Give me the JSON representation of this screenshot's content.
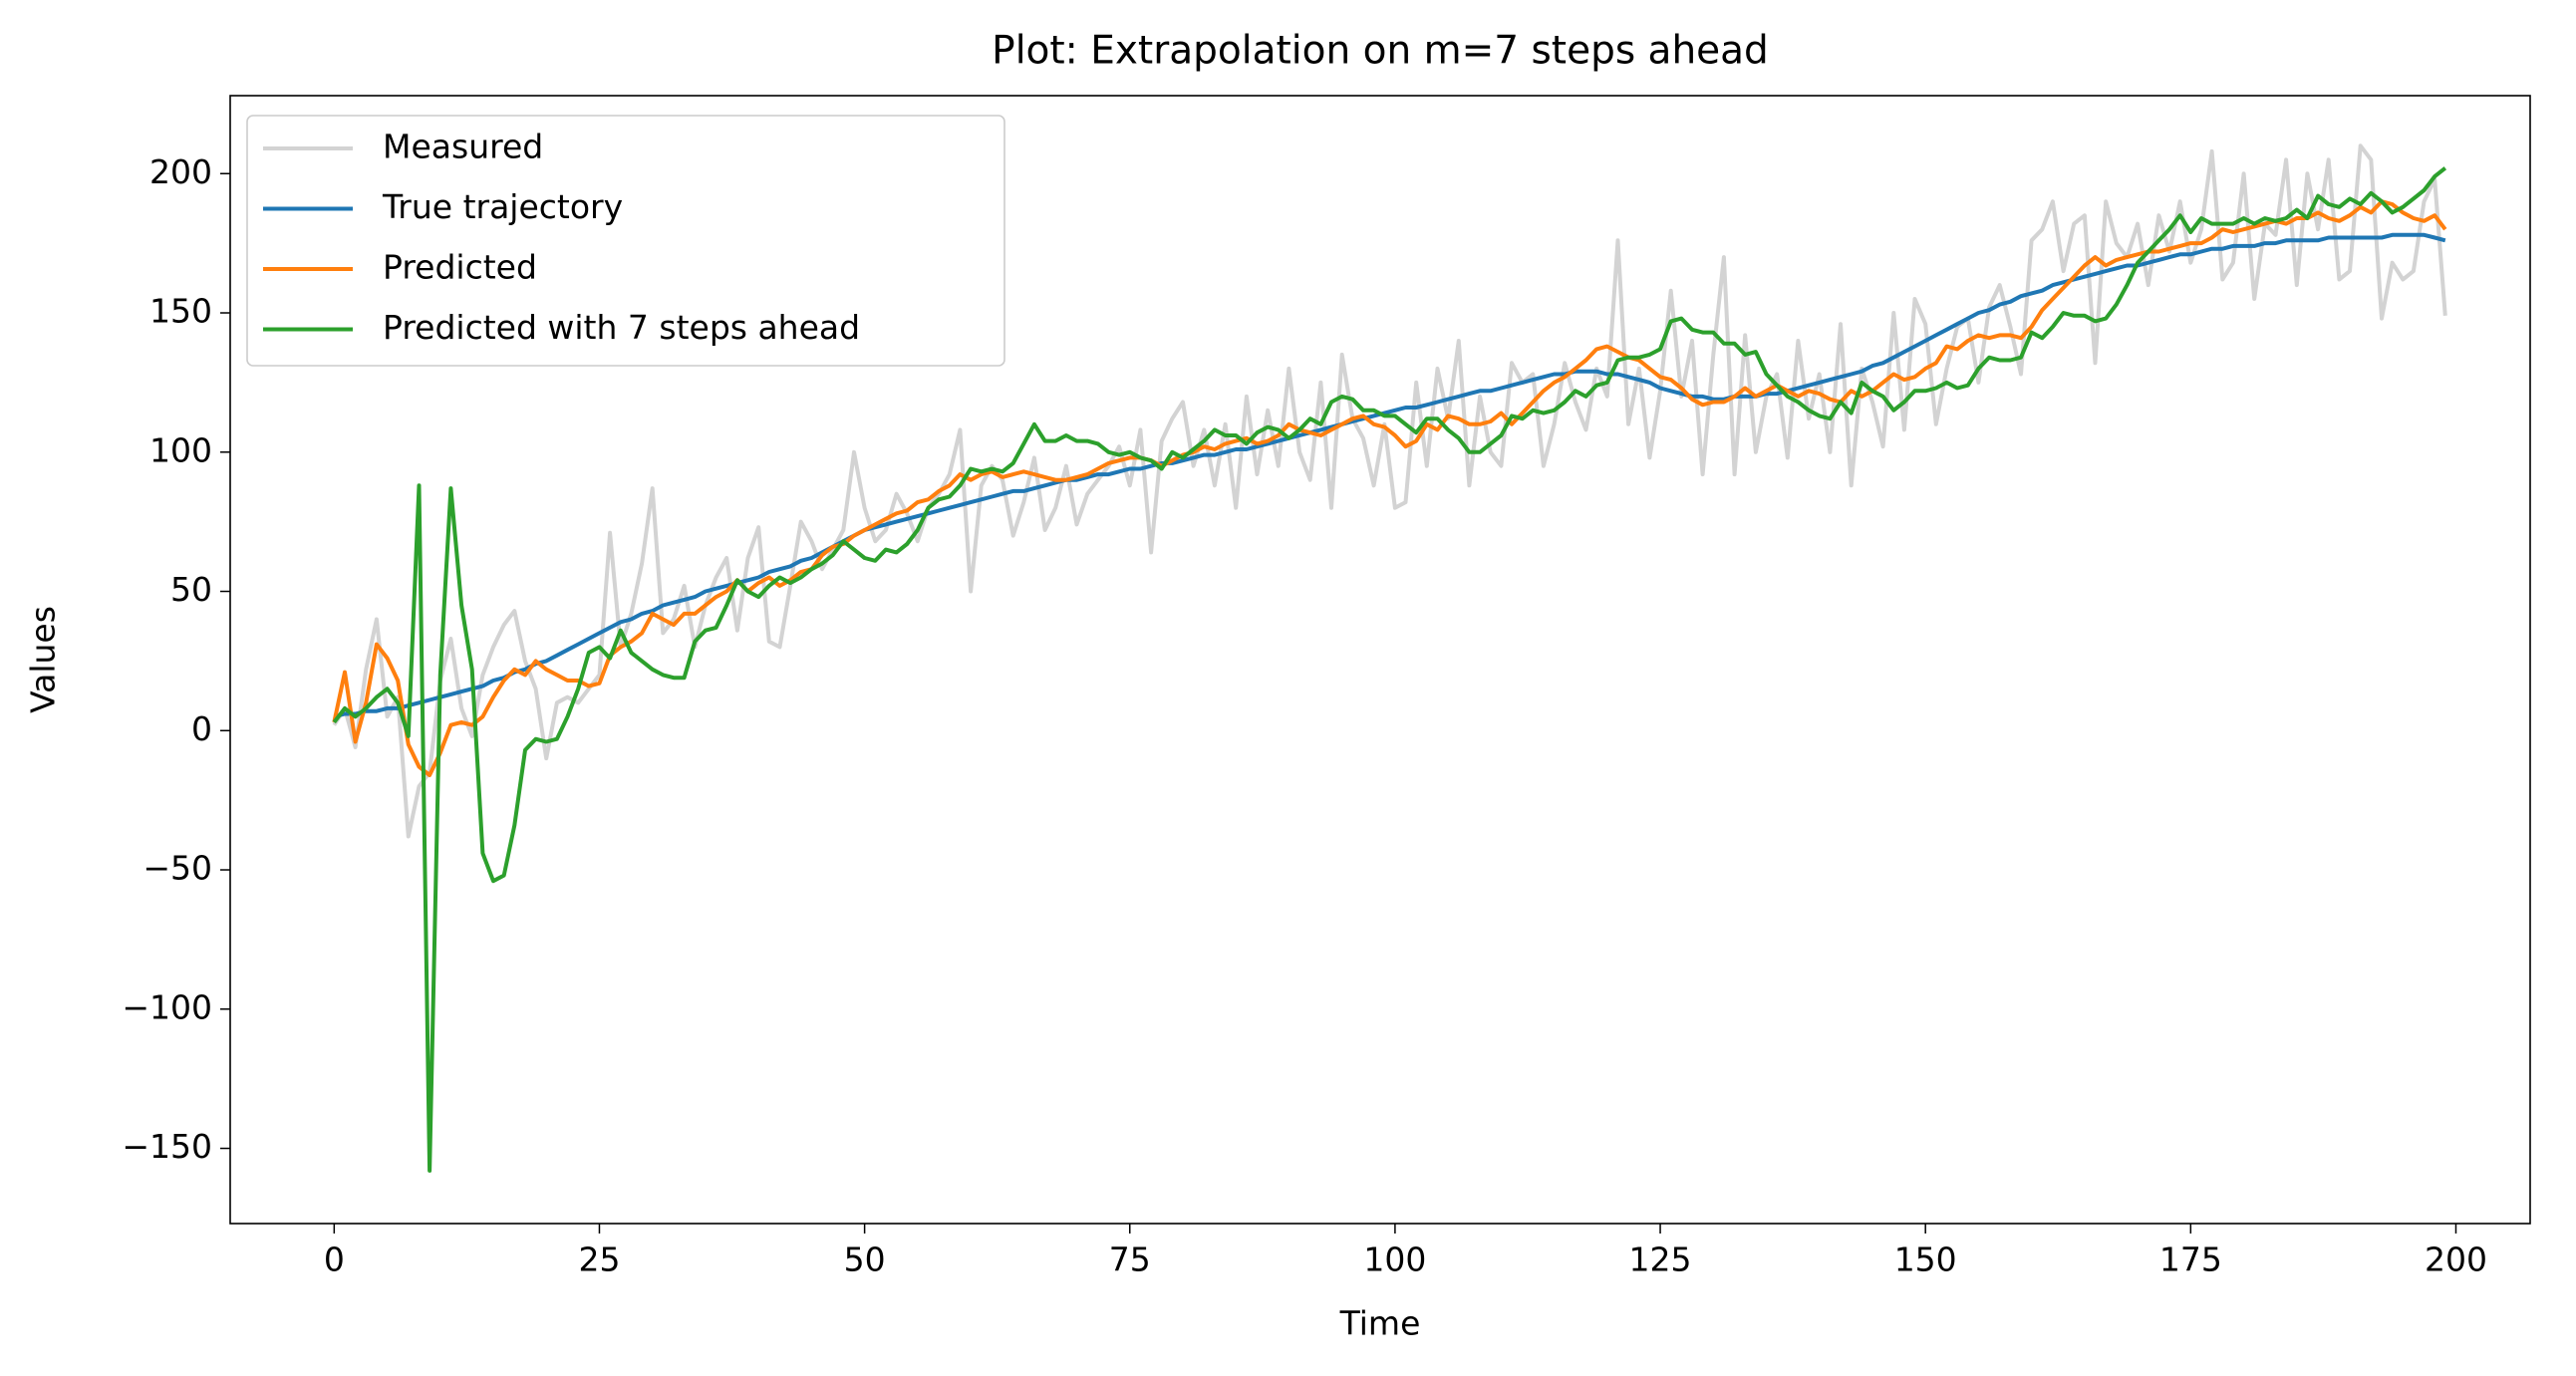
{
  "chart_data": {
    "type": "line",
    "title": "Plot: Extrapolation on m=7 steps ahead",
    "xlabel": "Time",
    "ylabel": "Values",
    "xlim": [
      -9.8,
      207
    ],
    "ylim": [
      -177,
      228
    ],
    "xticks": [
      0,
      25,
      50,
      75,
      100,
      125,
      150,
      175,
      200
    ],
    "yticks": [
      {
        "value": -150,
        "label": "−150"
      },
      {
        "value": -100,
        "label": "−100"
      },
      {
        "value": -50,
        "label": "−50"
      },
      0,
      50,
      100,
      150,
      200
    ],
    "legend": "upper left",
    "x": [
      0,
      1,
      2,
      3,
      4,
      5,
      6,
      7,
      8,
      9,
      10,
      11,
      12,
      13,
      14,
      15,
      16,
      17,
      18,
      19,
      20,
      21,
      22,
      23,
      24,
      25,
      26,
      27,
      28,
      29,
      30,
      31,
      32,
      33,
      34,
      35,
      36,
      37,
      38,
      39,
      40,
      41,
      42,
      43,
      44,
      45,
      46,
      47,
      48,
      49,
      50,
      51,
      52,
      53,
      54,
      55,
      56,
      57,
      58,
      59,
      60,
      61,
      62,
      63,
      64,
      65,
      66,
      67,
      68,
      69,
      70,
      71,
      72,
      73,
      74,
      75,
      76,
      77,
      78,
      79,
      80,
      81,
      82,
      83,
      84,
      85,
      86,
      87,
      88,
      89,
      90,
      91,
      92,
      93,
      94,
      95,
      96,
      97,
      98,
      99,
      100,
      101,
      102,
      103,
      104,
      105,
      106,
      107,
      108,
      109,
      110,
      111,
      112,
      113,
      114,
      115,
      116,
      117,
      118,
      119,
      120,
      121,
      122,
      123,
      124,
      125,
      126,
      127,
      128,
      129,
      130,
      131,
      132,
      133,
      134,
      135,
      136,
      137,
      138,
      139,
      140,
      141,
      142,
      143,
      144,
      145,
      146,
      147,
      148,
      149,
      150,
      151,
      152,
      153,
      154,
      155,
      156,
      157,
      158,
      159,
      160,
      161,
      162,
      163,
      164,
      165,
      166,
      167,
      168,
      169,
      170,
      171,
      172,
      173,
      174,
      175,
      176,
      177,
      178,
      179,
      180,
      181,
      182,
      183,
      184,
      185,
      186,
      187,
      188,
      189,
      190,
      191,
      192,
      193,
      194,
      195,
      196,
      197,
      198,
      199
    ],
    "series": [
      {
        "name": "Measured",
        "color": "#d3d3d3",
        "values": [
          2,
          8,
          -6,
          22,
          40,
          5,
          12,
          -38,
          -20,
          -15,
          18,
          33,
          8,
          -2,
          20,
          30,
          38,
          43,
          25,
          15,
          -10,
          10,
          12,
          10,
          15,
          20,
          71,
          30,
          42,
          60,
          87,
          35,
          40,
          52,
          30,
          45,
          55,
          62,
          36,
          62,
          73,
          32,
          30,
          52,
          75,
          68,
          58,
          65,
          72,
          100,
          80,
          68,
          72,
          85,
          78,
          68,
          80,
          85,
          92,
          108,
          50,
          88,
          95,
          90,
          70,
          82,
          98,
          72,
          80,
          95,
          74,
          85,
          90,
          95,
          102,
          88,
          108,
          64,
          104,
          112,
          118,
          95,
          108,
          88,
          110,
          80,
          120,
          92,
          115,
          95,
          130,
          100,
          90,
          125,
          80,
          135,
          112,
          105,
          88,
          110,
          80,
          82,
          125,
          95,
          130,
          112,
          140,
          88,
          120,
          100,
          95,
          132,
          125,
          128,
          95,
          110,
          132,
          118,
          108,
          130,
          120,
          176,
          110,
          130,
          98,
          122,
          158,
          120,
          140,
          92,
          135,
          170,
          92,
          142,
          100,
          120,
          128,
          98,
          140,
          112,
          128,
          100,
          146,
          88,
          130,
          118,
          102,
          150,
          108,
          155,
          146,
          110,
          130,
          145,
          148,
          125,
          152,
          160,
          145,
          128,
          176,
          180,
          190,
          165,
          182,
          185,
          132,
          190,
          175,
          170,
          182,
          160,
          185,
          172,
          190,
          168,
          180,
          208,
          162,
          168,
          200,
          155,
          182,
          178,
          205,
          160,
          200,
          180,
          205,
          162,
          165,
          210,
          205,
          148,
          168,
          162,
          165,
          190,
          198,
          149
        ]
      },
      {
        "name": "True trajectory",
        "color": "#1f77b4",
        "values": [
          5,
          6,
          6,
          7,
          7,
          8,
          8,
          9,
          10,
          11,
          12,
          13,
          14,
          15,
          16,
          18,
          19,
          21,
          22,
          24,
          25,
          27,
          29,
          31,
          33,
          35,
          37,
          39,
          40,
          42,
          43,
          45,
          46,
          47,
          48,
          50,
          51,
          52,
          53,
          54,
          55,
          57,
          58,
          59,
          61,
          62,
          64,
          66,
          68,
          70,
          72,
          73,
          74,
          75,
          76,
          77,
          78,
          79,
          80,
          81,
          82,
          83,
          84,
          85,
          86,
          86,
          87,
          88,
          89,
          90,
          90,
          91,
          92,
          92,
          93,
          94,
          94,
          95,
          96,
          96,
          97,
          98,
          99,
          99,
          100,
          101,
          101,
          102,
          103,
          104,
          105,
          106,
          107,
          108,
          109,
          110,
          111,
          112,
          113,
          114,
          115,
          116,
          116,
          117,
          118,
          119,
          120,
          121,
          122,
          122,
          123,
          124,
          125,
          126,
          127,
          128,
          128,
          129,
          129,
          129,
          128,
          128,
          127,
          126,
          125,
          123,
          122,
          121,
          120,
          120,
          119,
          119,
          120,
          120,
          120,
          121,
          121,
          122,
          123,
          124,
          125,
          126,
          127,
          128,
          129,
          131,
          132,
          134,
          136,
          138,
          140,
          142,
          144,
          146,
          148,
          150,
          151,
          153,
          154,
          156,
          157,
          158,
          160,
          161,
          162,
          163,
          164,
          165,
          166,
          167,
          167,
          168,
          169,
          170,
          171,
          171,
          172,
          173,
          173,
          174,
          174,
          174,
          175,
          175,
          176,
          176,
          176,
          176,
          177,
          177,
          177,
          177,
          177,
          177,
          178,
          178,
          178,
          178,
          177,
          176
        ]
      },
      {
        "name": "Predicted",
        "color": "#ff7f0e",
        "values": [
          3,
          21,
          -4,
          10,
          31,
          26,
          18,
          -5,
          -13,
          -16,
          -8,
          2,
          3,
          2,
          5,
          12,
          18,
          22,
          20,
          25,
          22,
          20,
          18,
          18,
          16,
          17,
          27,
          30,
          32,
          35,
          42,
          40,
          38,
          42,
          42,
          45,
          48,
          50,
          54,
          50,
          53,
          55,
          52,
          54,
          57,
          58,
          63,
          66,
          67,
          70,
          72,
          74,
          76,
          78,
          79,
          82,
          83,
          86,
          88,
          92,
          90,
          92,
          93,
          91,
          92,
          93,
          92,
          91,
          90,
          90,
          91,
          92,
          94,
          96,
          97,
          98,
          98,
          97,
          95,
          97,
          99,
          100,
          102,
          101,
          103,
          104,
          105,
          103,
          104,
          106,
          110,
          108,
          107,
          106,
          108,
          110,
          112,
          113,
          110,
          109,
          106,
          102,
          104,
          110,
          108,
          113,
          112,
          110,
          110,
          111,
          114,
          110,
          114,
          118,
          122,
          125,
          127,
          130,
          133,
          137,
          138,
          136,
          134,
          133,
          130,
          127,
          126,
          123,
          119,
          117,
          118,
          118,
          120,
          123,
          120,
          122,
          124,
          122,
          120,
          122,
          121,
          119,
          118,
          122,
          120,
          122,
          125,
          128,
          126,
          127,
          130,
          132,
          138,
          137,
          140,
          142,
          141,
          142,
          142,
          141,
          145,
          151,
          155,
          159,
          163,
          167,
          170,
          167,
          169,
          170,
          171,
          172,
          172,
          173,
          174,
          175,
          175,
          177,
          180,
          179,
          180,
          181,
          182,
          183,
          182,
          184,
          184,
          186,
          184,
          183,
          185,
          188,
          186,
          190,
          189,
          186,
          184,
          183,
          185,
          180
        ]
      },
      {
        "name": "Predicted with 7 steps ahead",
        "color": "#2ca02c",
        "values": [
          3,
          8,
          5,
          8,
          12,
          15,
          10,
          -2,
          88,
          -158,
          20,
          87,
          45,
          22,
          -44,
          -54,
          -52,
          -34,
          -7,
          -3,
          -4,
          -3,
          5,
          15,
          28,
          30,
          26,
          36,
          28,
          25,
          22,
          20,
          19,
          19,
          32,
          36,
          37,
          45,
          54,
          50,
          48,
          52,
          55,
          53,
          55,
          58,
          60,
          63,
          68,
          65,
          62,
          61,
          65,
          64,
          67,
          72,
          80,
          83,
          84,
          88,
          94,
          93,
          94,
          93,
          96,
          103,
          110,
          104,
          104,
          106,
          104,
          104,
          103,
          100,
          99,
          100,
          98,
          97,
          94,
          100,
          98,
          101,
          104,
          108,
          106,
          106,
          103,
          107,
          109,
          108,
          105,
          108,
          112,
          110,
          118,
          120,
          119,
          115,
          115,
          113,
          113,
          110,
          107,
          112,
          112,
          108,
          105,
          100,
          100,
          103,
          106,
          113,
          112,
          115,
          114,
          115,
          118,
          122,
          120,
          124,
          125,
          133,
          134,
          134,
          135,
          137,
          147,
          148,
          144,
          143,
          143,
          139,
          139,
          135,
          136,
          128,
          124,
          120,
          118,
          115,
          113,
          112,
          118,
          114,
          125,
          122,
          120,
          115,
          118,
          122,
          122,
          123,
          125,
          123,
          124,
          130,
          134,
          133,
          133,
          134,
          143,
          141,
          145,
          150,
          149,
          149,
          147,
          148,
          153,
          160,
          168,
          172,
          176,
          180,
          185,
          179,
          184,
          182,
          182,
          182,
          184,
          182,
          184,
          183,
          184,
          187,
          184,
          192,
          189,
          188,
          191,
          189,
          193,
          190,
          186,
          188,
          191,
          194,
          199,
          202
        ]
      }
    ]
  }
}
